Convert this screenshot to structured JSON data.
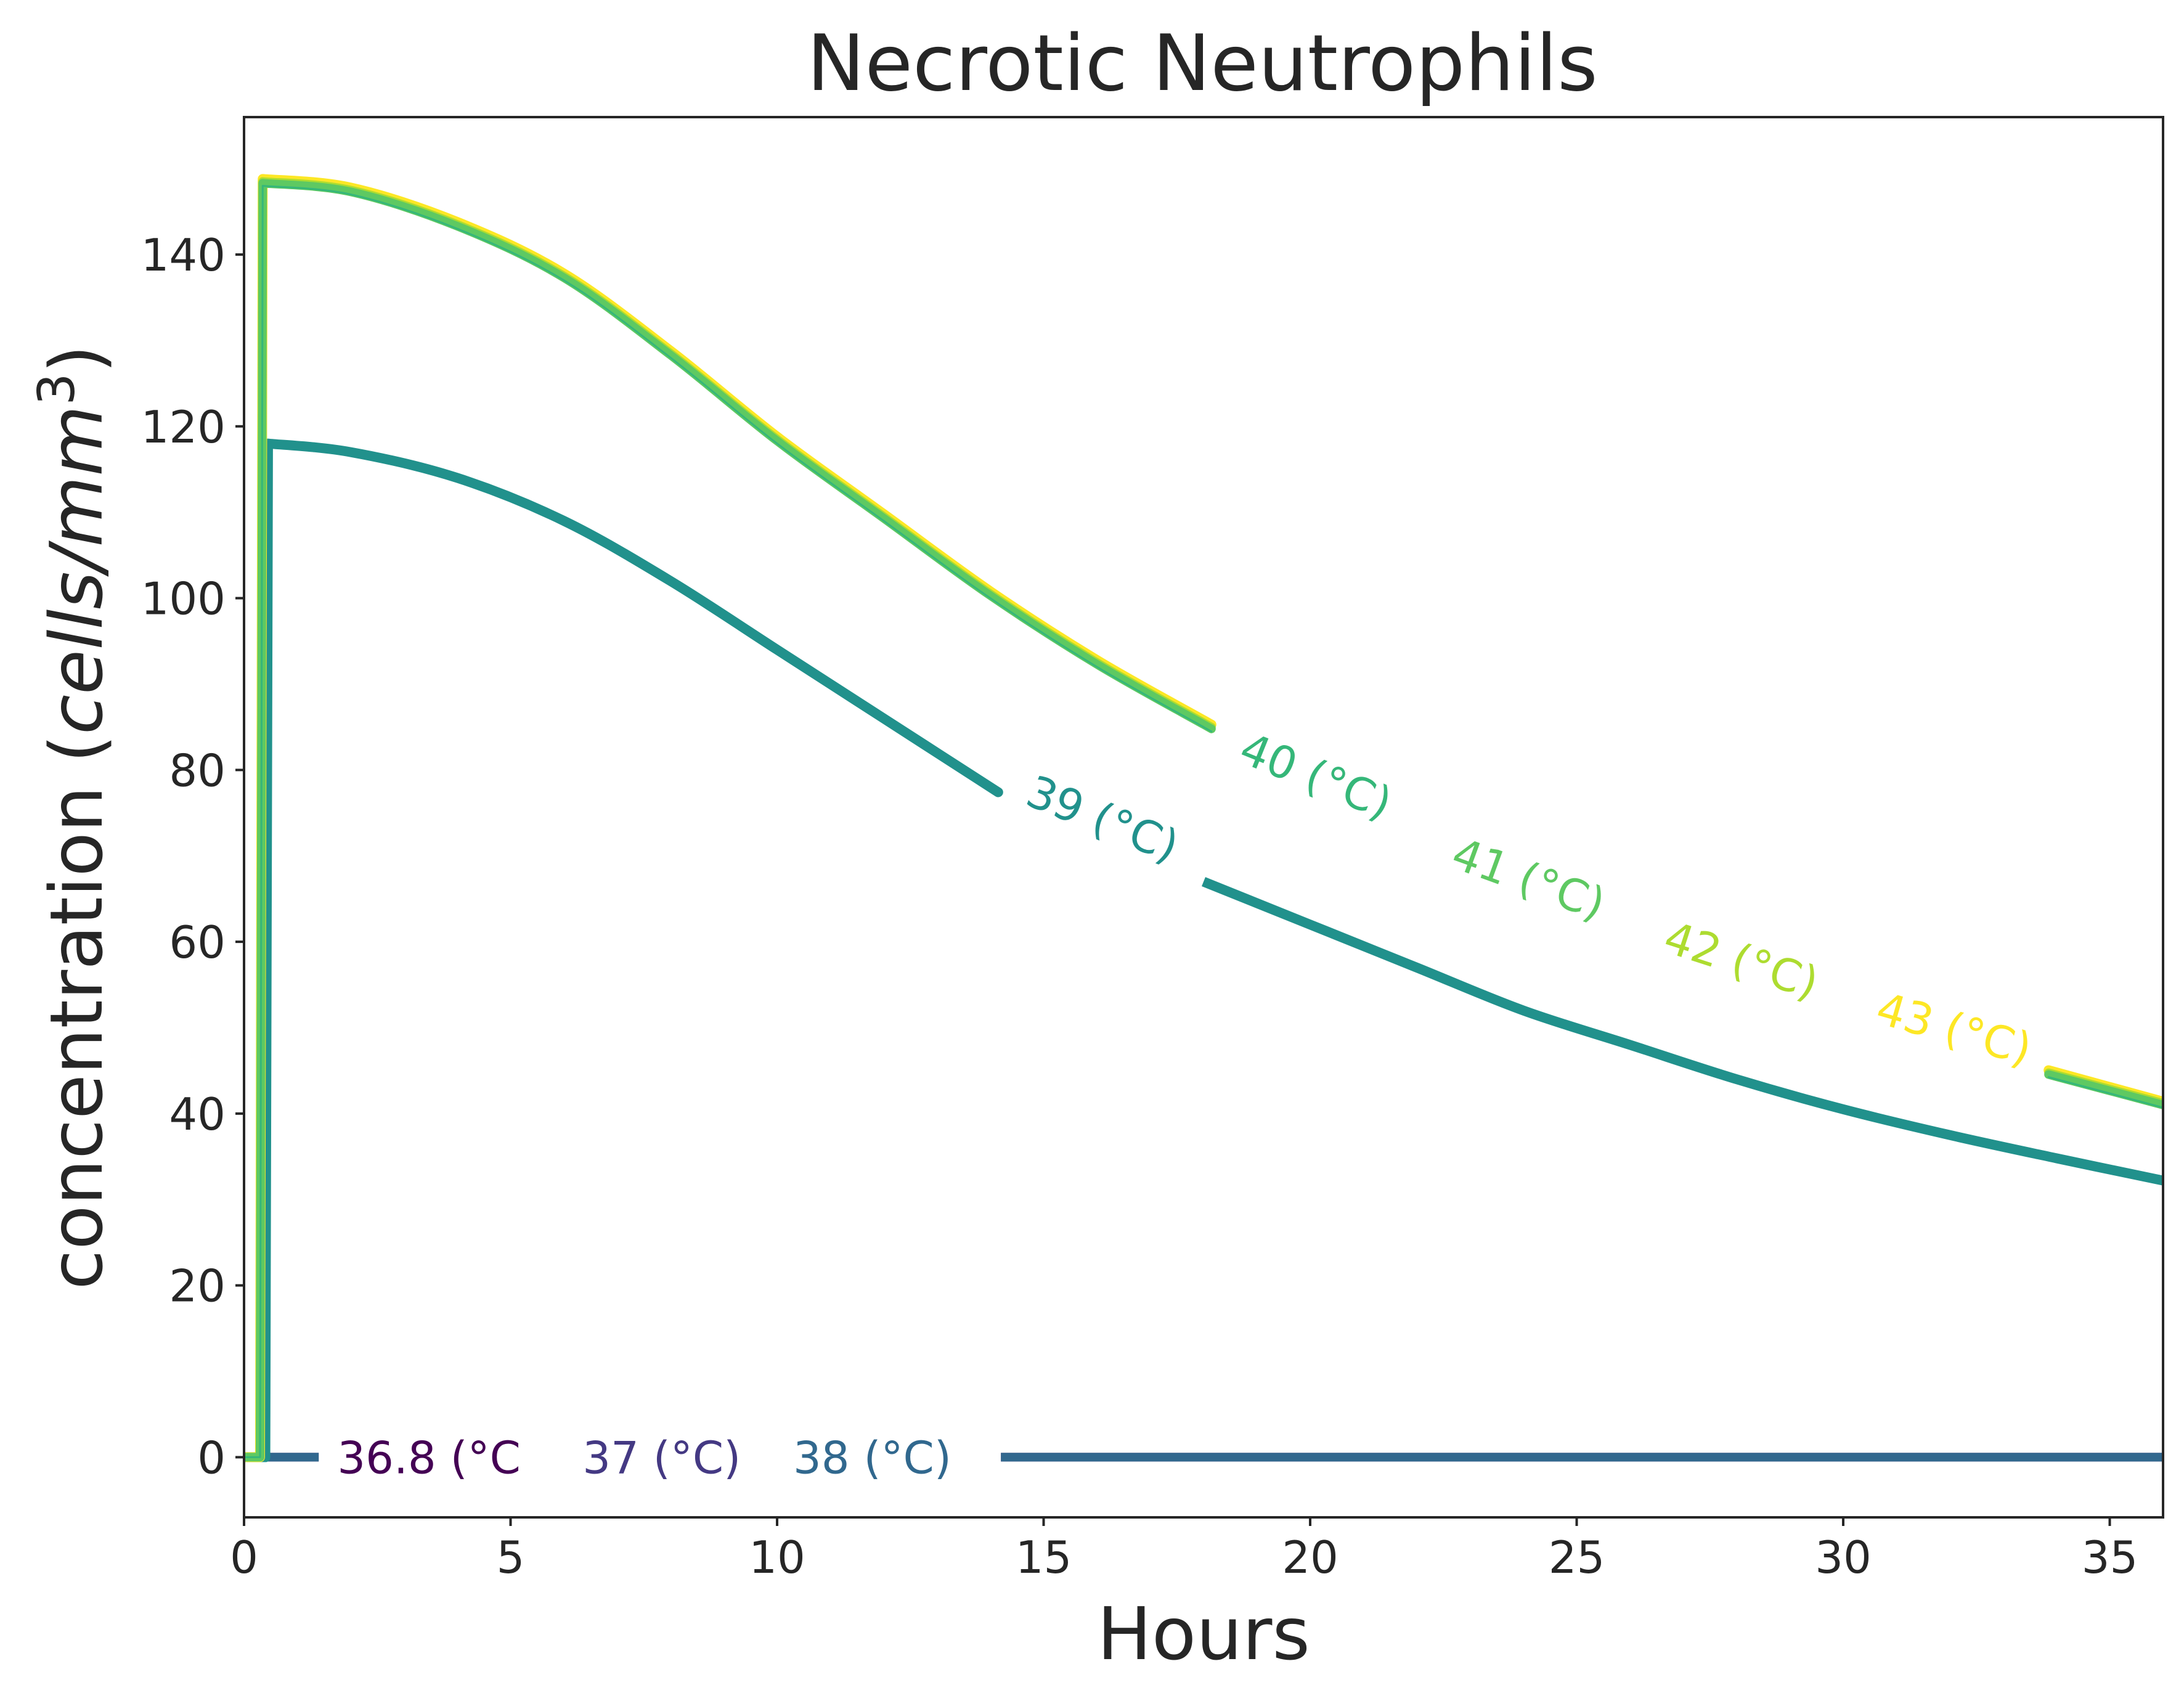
{
  "chart_data": {
    "type": "line",
    "title": "Necrotic Neutrophils",
    "xlabel": "Hours",
    "ylabel": "concentration",
    "ylabel_unit": "cells/mm",
    "ylabel_unit_exp": "3",
    "xlim": [
      0,
      36
    ],
    "ylim": [
      -7,
      156
    ],
    "x_ticks": [
      0,
      5,
      10,
      15,
      20,
      25,
      30,
      35
    ],
    "y_ticks": [
      0,
      20,
      40,
      60,
      80,
      100,
      120,
      140
    ],
    "grid": false,
    "legend": "none (inline contour-style labels)",
    "series": [
      {
        "name": "36.8 (°C",
        "label_text": "36.8 ($^\\circ$C",
        "color": "#440154",
        "x": [
          0,
          36
        ],
        "y": [
          0,
          0
        ]
      },
      {
        "name": "37 (°C)",
        "label_text": "37 ($^\\circ$C)",
        "color": "#443983",
        "x": [
          0,
          36
        ],
        "y": [
          0,
          0
        ]
      },
      {
        "name": "38 (°C)",
        "label_text": "38 ($^\\circ$C)",
        "color": "#31688e",
        "x": [
          0,
          36
        ],
        "y": [
          0,
          0
        ]
      },
      {
        "name": "39 (°C)",
        "label_text": "39 ($^\\circ$C)",
        "color": "#21918c",
        "x": [
          0,
          0.4,
          0.45,
          2,
          4,
          6,
          8,
          10,
          12,
          14,
          16,
          18,
          20,
          22,
          24,
          26,
          28,
          30,
          32,
          34,
          36
        ],
        "y": [
          0,
          0,
          118,
          117,
          114,
          109,
          102,
          94,
          86,
          78,
          71,
          67,
          62,
          57,
          52,
          48,
          44,
          40.5,
          37.5,
          34.8,
          32.2
        ]
      },
      {
        "name": "40 (°C)",
        "label_text": "40 ($^\\circ$C)",
        "color": "#35b779",
        "x": [
          0,
          0.3,
          0.35,
          2,
          4,
          6,
          8,
          10,
          12,
          14,
          16,
          18,
          20,
          22,
          24,
          26,
          28,
          30,
          32,
          34,
          36
        ],
        "y": [
          0,
          0,
          148,
          147,
          143,
          137,
          128,
          118,
          109,
          100,
          92,
          85,
          78,
          72,
          66,
          61,
          56,
          52,
          48,
          44,
          40.7
        ]
      },
      {
        "name": "41 (°C)",
        "label_text": "41 ($^\\circ$C)",
        "color": "#5ec962",
        "x": [
          0,
          0.3,
          0.35,
          2,
          4,
          6,
          8,
          10,
          12,
          14,
          16,
          18,
          20,
          22,
          24,
          26,
          28,
          30,
          32,
          34,
          36
        ],
        "y": [
          0,
          0,
          148.3,
          147.3,
          143.3,
          137.3,
          128.3,
          118.3,
          109.3,
          100.3,
          92.3,
          85.3,
          78.3,
          72.3,
          66.3,
          61.3,
          56.3,
          52.3,
          48.3,
          44.3,
          41
        ]
      },
      {
        "name": "42 (°C)",
        "label_text": "42 ($^\\circ$C)",
        "color": "#addc30",
        "x": [
          0,
          0.3,
          0.35,
          2,
          4,
          6,
          8,
          10,
          12,
          14,
          16,
          18,
          20,
          22,
          24,
          26,
          28,
          30,
          32,
          34,
          36
        ],
        "y": [
          0,
          0,
          148.5,
          147.5,
          143.5,
          137.5,
          128.5,
          118.5,
          109.5,
          100.5,
          92.5,
          85.5,
          78.5,
          72.5,
          66.5,
          61.5,
          56.5,
          52.5,
          48.5,
          44.5,
          41.2
        ]
      },
      {
        "name": "43 (°C)",
        "label_text": "43 ($^\\circ$C)",
        "color": "#fde725",
        "x": [
          0,
          0.3,
          0.35,
          2,
          4,
          6,
          8,
          10,
          12,
          14,
          16,
          18,
          20,
          22,
          24,
          26,
          28,
          30,
          32,
          34,
          36
        ],
        "y": [
          0,
          0,
          148.8,
          147.8,
          143.8,
          137.8,
          128.8,
          118.8,
          109.8,
          100.8,
          92.8,
          85.8,
          78.8,
          72.8,
          66.8,
          61.8,
          56.8,
          52.8,
          48.8,
          44.8,
          41.4
        ]
      }
    ]
  }
}
